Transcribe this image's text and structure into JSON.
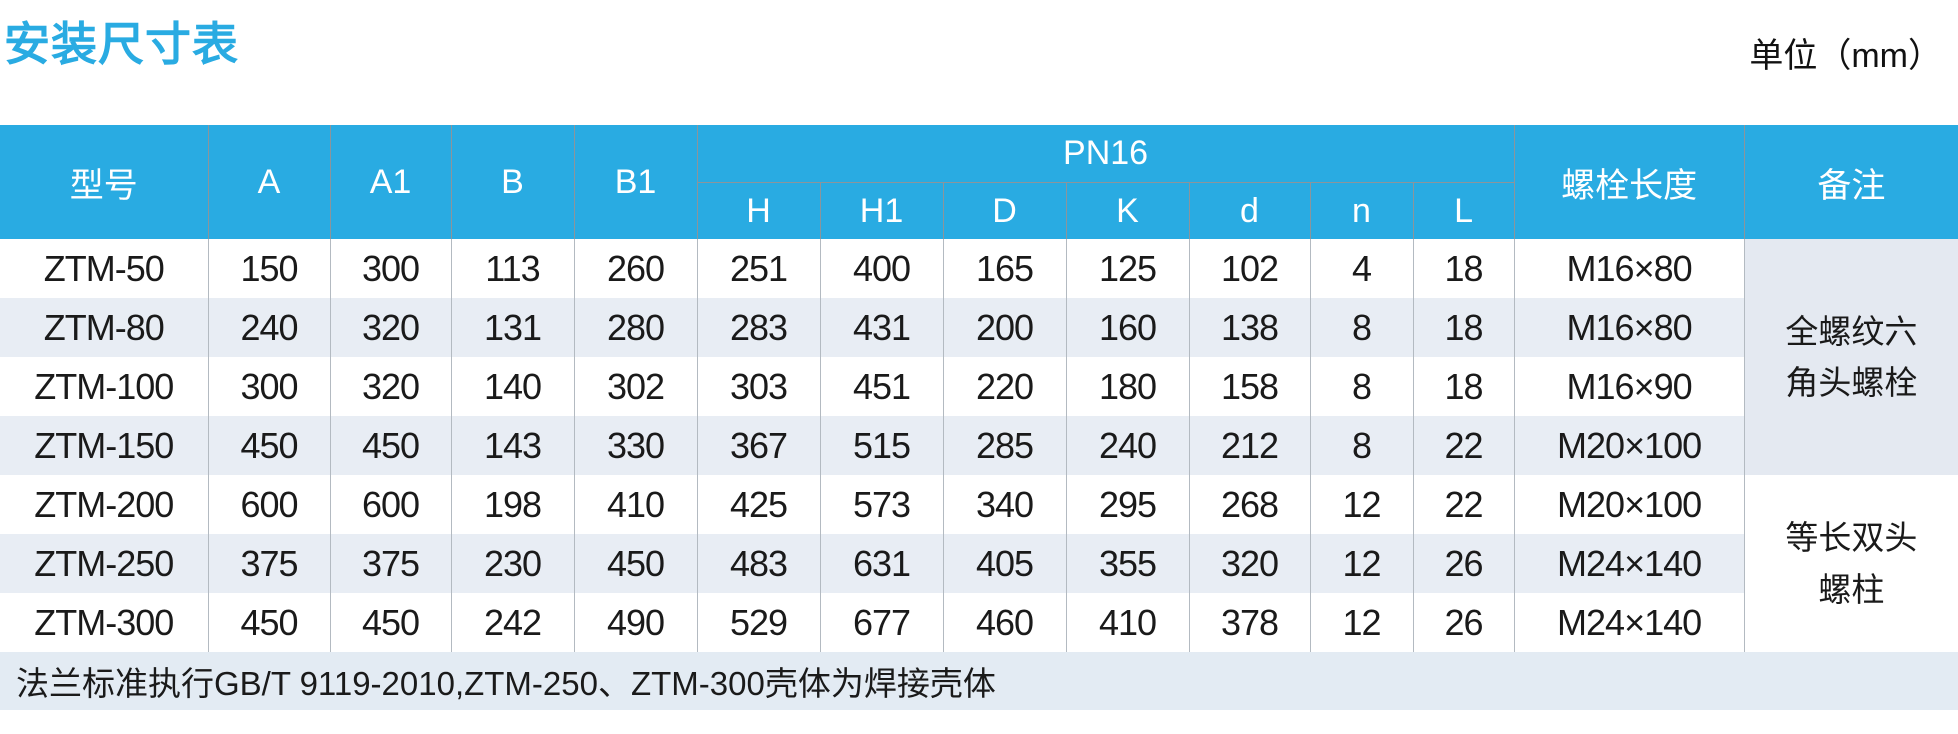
{
  "page": {
    "title": "安装尺寸表",
    "unit_label": "单位（mm）"
  },
  "colors": {
    "accent_blue": "#29abe2",
    "stripe": "#e8edf4",
    "remark_tint": "#e4e9f1",
    "footnote_bg": "#e3ebf3"
  },
  "table": {
    "headers": {
      "model": "型号",
      "a": "A",
      "a1": "A1",
      "b": "B",
      "b1": "B1",
      "pn16_group": "PN16",
      "sub": [
        "H",
        "H1",
        "D",
        "K",
        "d",
        "n",
        "L"
      ],
      "bolt_length": "螺栓长度",
      "remark": "备注"
    },
    "rows": [
      {
        "model": "ZTM-50",
        "values": [
          "150",
          "300",
          "113",
          "260",
          "251",
          "400",
          "165",
          "125",
          "102",
          "4",
          "18"
        ],
        "bolt": "M16×80"
      },
      {
        "model": "ZTM-80",
        "values": [
          "240",
          "320",
          "131",
          "280",
          "283",
          "431",
          "200",
          "160",
          "138",
          "8",
          "18"
        ],
        "bolt": "M16×80"
      },
      {
        "model": "ZTM-100",
        "values": [
          "300",
          "320",
          "140",
          "302",
          "303",
          "451",
          "220",
          "180",
          "158",
          "8",
          "18"
        ],
        "bolt": "M16×90"
      },
      {
        "model": "ZTM-150",
        "values": [
          "450",
          "450",
          "143",
          "330",
          "367",
          "515",
          "285",
          "240",
          "212",
          "8",
          "22"
        ],
        "bolt": "M20×100"
      },
      {
        "model": "ZTM-200",
        "values": [
          "600",
          "600",
          "198",
          "410",
          "425",
          "573",
          "340",
          "295",
          "268",
          "12",
          "22"
        ],
        "bolt": "M20×100"
      },
      {
        "model": "ZTM-250",
        "values": [
          "375",
          "375",
          "230",
          "450",
          "483",
          "631",
          "405",
          "355",
          "320",
          "12",
          "26"
        ],
        "bolt": "M24×140"
      },
      {
        "model": "ZTM-300",
        "values": [
          "450",
          "450",
          "242",
          "490",
          "529",
          "677",
          "460",
          "410",
          "378",
          "12",
          "26"
        ],
        "bolt": "M24×140"
      }
    ],
    "remarks": [
      {
        "text": "全螺纹六角头螺栓",
        "rows": 4
      },
      {
        "text": "等长双头螺柱",
        "rows": 3
      }
    ],
    "footnote": "法兰标准执行GB/T 9119-2010,ZTM-250、ZTM-300壳体为焊接壳体"
  }
}
